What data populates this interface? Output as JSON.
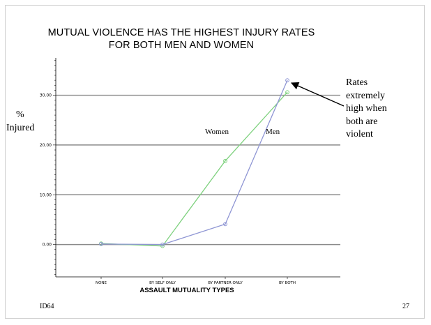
{
  "slide": {
    "title_line1": "MUTUAL VIOLENCE HAS THE HIGHEST INJURY RATES",
    "title_line2": "FOR BOTH MEN AND WOMEN",
    "y_label_line1": "%",
    "y_label_line2": "Injured",
    "annotation_lines": [
      "Rates",
      "extremely",
      "high when",
      "both are",
      "violent"
    ],
    "footer_id": "ID64",
    "page_number": "27"
  },
  "chart_data": {
    "type": "line",
    "categories": [
      "NONE",
      "BY SELF ONLY",
      "BY PARTNER ONLY",
      "BY BOTH"
    ],
    "xlabel": "ASSAULT MUTUALITY TYPES",
    "ylabel": "% Injured",
    "ylim": [
      -6.5,
      37.5
    ],
    "yticks": [
      0,
      10,
      20,
      30
    ],
    "ytick_labels": [
      "0.00",
      "10.00",
      "20.00",
      "30.00"
    ],
    "grid": true,
    "series": [
      {
        "name": "Women",
        "color": "#7ed17e",
        "values": [
          0.2,
          -0.3,
          16.8,
          30.6
        ]
      },
      {
        "name": "Men",
        "color": "#8f96d4",
        "values": [
          0.1,
          0.0,
          4.1,
          33.0
        ]
      }
    ]
  }
}
